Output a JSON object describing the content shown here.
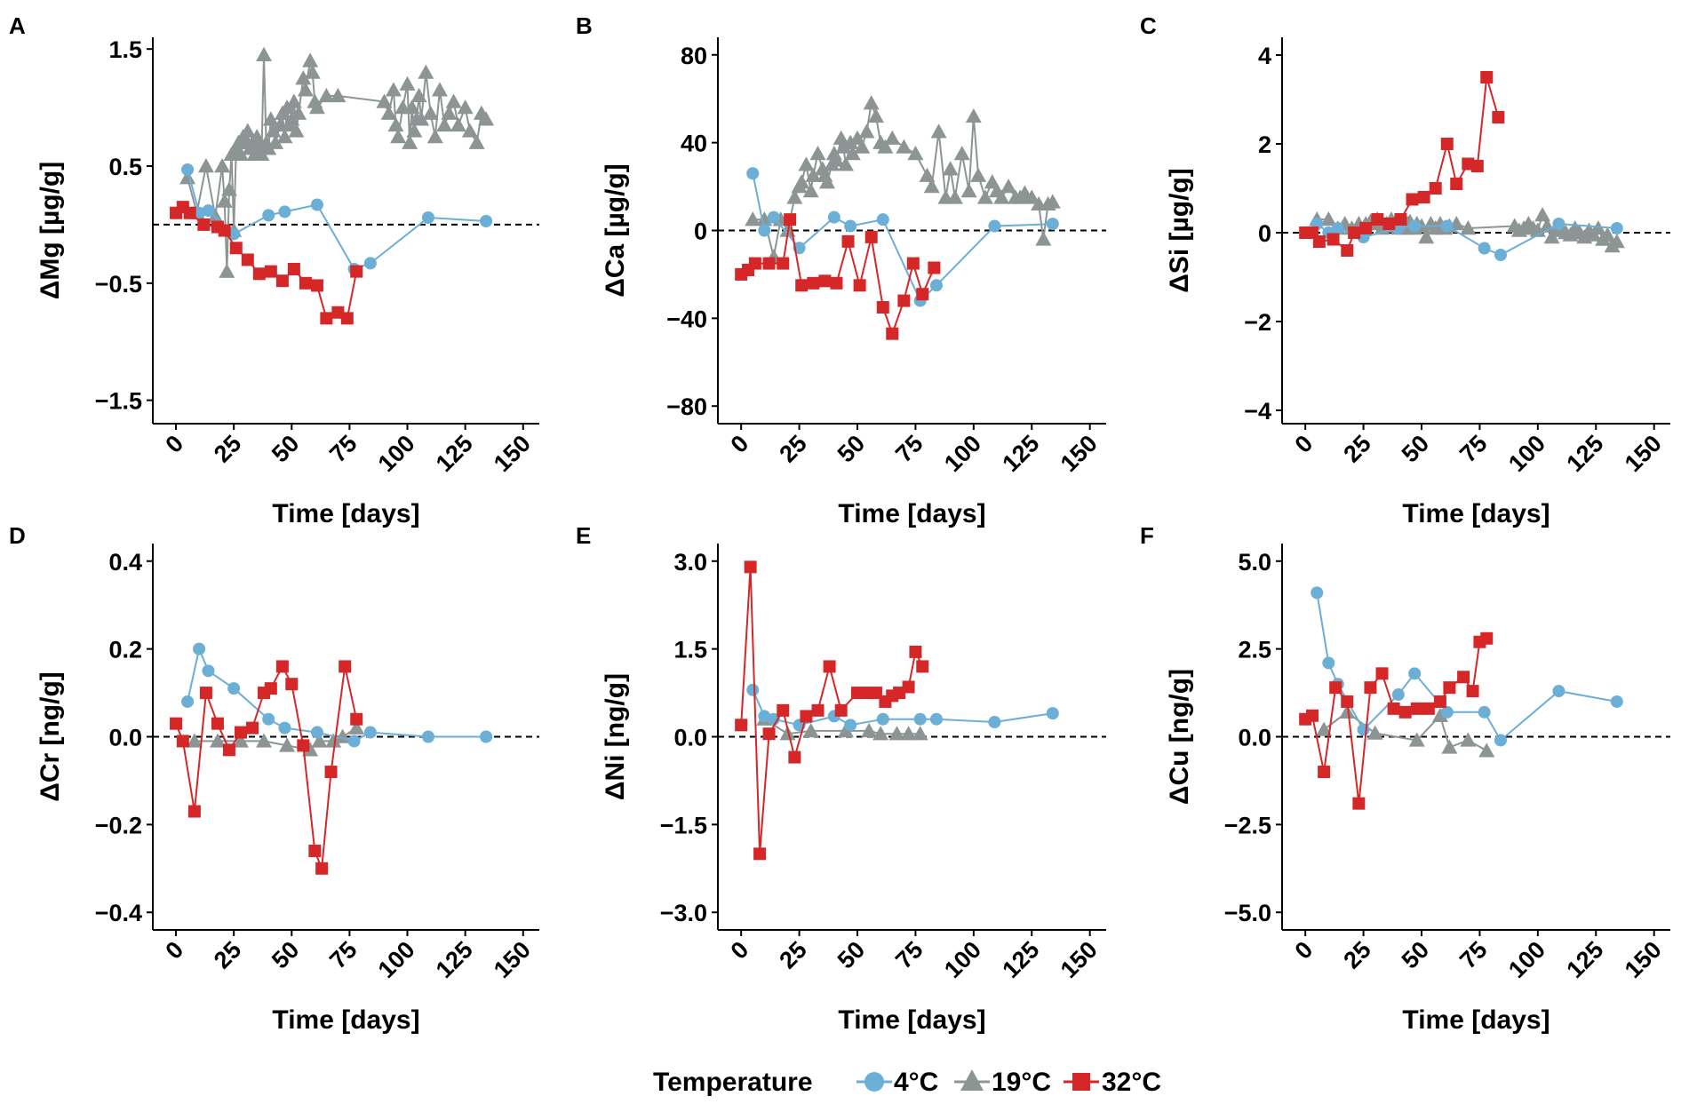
{
  "colors": {
    "4C": "#6baed6",
    "19C": "#8c9593",
    "32C": "#d62728",
    "zero_line": "#000000"
  },
  "legend": {
    "title": "Temperature",
    "items": [
      {
        "key": "4C",
        "label": "4°C",
        "marker": "circle"
      },
      {
        "key": "19C",
        "label": "19°C",
        "marker": "triangle"
      },
      {
        "key": "32C",
        "label": "32°C",
        "marker": "square"
      }
    ]
  },
  "chart_data": [
    {
      "panel": "A",
      "type": "line",
      "xlabel": "Time [days]",
      "ylabel": "ΔMg [µg/g]",
      "xlim": [
        -10,
        157
      ],
      "ylim": [
        -1.7,
        1.6
      ],
      "xticks": [
        0,
        25,
        50,
        75,
        100,
        125,
        150
      ],
      "yticks": [
        1.5,
        0.5,
        -0.5,
        -1.5
      ],
      "ytick_labels": [
        "1.5",
        "0.5",
        "−0.5",
        "−1.5"
      ],
      "series": [
        {
          "name": "4°C",
          "key": "4C",
          "x": [
            5,
            10,
            14,
            25,
            40,
            47,
            61,
            77,
            84,
            109,
            134
          ],
          "y": [
            0.47,
            0.1,
            0.12,
            -0.08,
            0.08,
            0.11,
            0.17,
            -0.38,
            -0.33,
            0.06,
            0.03
          ]
        },
        {
          "name": "19°C",
          "key": "19C",
          "x": [
            5,
            9,
            13,
            17,
            20,
            21,
            22,
            23,
            24,
            25,
            26,
            27,
            28,
            29,
            30,
            31,
            32,
            33,
            34,
            35,
            36,
            37,
            38,
            39,
            40,
            41,
            42,
            43,
            45,
            46,
            47,
            48,
            49,
            50,
            51,
            52,
            53,
            55,
            56,
            58,
            59,
            60,
            61,
            65,
            70,
            90,
            92,
            94,
            95,
            96,
            98,
            100,
            101,
            102,
            103,
            104,
            105,
            106,
            108,
            110,
            112,
            114,
            116,
            118,
            120,
            122,
            125,
            127,
            130,
            132,
            134
          ],
          "y": [
            0.4,
            0.1,
            0.5,
            0.07,
            0.5,
            0.2,
            -0.4,
            0.3,
            0.6,
            -0.05,
            0.65,
            0.7,
            0.6,
            0.75,
            0.7,
            0.8,
            0.65,
            0.7,
            0.6,
            0.75,
            0.65,
            0.6,
            1.45,
            0.7,
            0.65,
            0.9,
            0.8,
            0.7,
            0.85,
            0.95,
            0.75,
            1.0,
            0.85,
            0.9,
            1.05,
            0.8,
            0.95,
            1.25,
            1.15,
            1.4,
            1.3,
            1.05,
            1.0,
            1.1,
            1.1,
            1.05,
            0.95,
            1.15,
            0.85,
            0.75,
            1.0,
            1.2,
            0.7,
            1.0,
            0.8,
            0.9,
            1.1,
            0.9,
            1.3,
            0.95,
            0.75,
            1.15,
            0.85,
            0.95,
            1.05,
            0.85,
            1.0,
            0.8,
            0.7,
            0.95,
            0.9
          ]
        },
        {
          "name": "32°C",
          "key": "32C",
          "x": [
            0,
            3,
            6,
            12,
            18,
            21,
            26,
            31,
            36,
            41,
            46,
            51,
            56,
            61,
            65,
            70,
            74,
            78
          ],
          "y": [
            0.1,
            0.15,
            0.1,
            0.0,
            -0.02,
            -0.05,
            -0.2,
            -0.3,
            -0.42,
            -0.4,
            -0.48,
            -0.38,
            -0.5,
            -0.52,
            -0.8,
            -0.75,
            -0.8,
            -0.4
          ]
        }
      ]
    },
    {
      "panel": "B",
      "type": "line",
      "xlabel": "Time [days]",
      "ylabel": "ΔCa [µg/g]",
      "xlim": [
        -10,
        157
      ],
      "ylim": [
        -88,
        88
      ],
      "xticks": [
        0,
        25,
        50,
        75,
        100,
        125,
        150
      ],
      "yticks": [
        80,
        40,
        0,
        -40,
        -80
      ],
      "ytick_labels": [
        "80",
        "40",
        "0",
        "−40",
        "−80"
      ],
      "series": [
        {
          "name": "4°C",
          "key": "4C",
          "x": [
            5,
            10,
            14,
            25,
            40,
            47,
            61,
            77,
            84,
            109,
            134
          ],
          "y": [
            26,
            0,
            6,
            -8,
            6,
            2,
            5,
            -32,
            -25,
            2,
            3
          ]
        },
        {
          "name": "19°C",
          "key": "19C",
          "x": [
            5,
            10,
            14,
            17,
            20,
            23,
            25,
            26,
            28,
            30,
            31,
            33,
            35,
            36,
            37,
            39,
            40,
            41,
            43,
            44,
            45,
            47,
            48,
            50,
            52,
            54,
            56,
            58,
            60,
            62,
            65,
            70,
            75,
            80,
            82,
            85,
            88,
            90,
            92,
            95,
            98,
            100,
            102,
            105,
            108,
            110,
            112,
            115,
            118,
            120,
            122,
            125,
            128,
            130,
            132,
            134
          ],
          "y": [
            5,
            5,
            -12,
            5,
            0,
            15,
            20,
            22,
            30,
            18,
            25,
            35,
            28,
            25,
            22,
            30,
            35,
            32,
            42,
            38,
            30,
            40,
            35,
            42,
            38,
            45,
            58,
            52,
            40,
            38,
            42,
            38,
            35,
            25,
            20,
            45,
            15,
            28,
            15,
            35,
            18,
            52,
            25,
            15,
            22,
            18,
            15,
            20,
            15,
            15,
            17,
            15,
            12,
            -4,
            12,
            13
          ]
        },
        {
          "name": "32°C",
          "key": "32C",
          "x": [
            0,
            3,
            6,
            12,
            18,
            21,
            26,
            31,
            36,
            41,
            46,
            51,
            56,
            61,
            65,
            70,
            74,
            78,
            83
          ],
          "y": [
            -20,
            -18,
            -15,
            -15,
            -15,
            5,
            -25,
            -24,
            -23,
            -24,
            -5,
            -25,
            -3,
            -35,
            -47,
            -32,
            -15,
            -29,
            -17
          ]
        }
      ]
    },
    {
      "panel": "C",
      "type": "line",
      "xlabel": "Time [days]",
      "ylabel": "ΔSi [µg/g]",
      "xlim": [
        -10,
        157
      ],
      "ylim": [
        -4.3,
        4.4
      ],
      "xticks": [
        0,
        25,
        50,
        75,
        100,
        125,
        150
      ],
      "yticks": [
        4,
        2,
        0,
        -2,
        -4
      ],
      "ytick_labels": [
        "4",
        "2",
        "0",
        "−2",
        "−4"
      ],
      "series": [
        {
          "name": "4°C",
          "key": "4C",
          "x": [
            5,
            10,
            14,
            25,
            40,
            47,
            61,
            77,
            84,
            109,
            134
          ],
          "y": [
            0.2,
            0.0,
            0.1,
            -0.1,
            0.1,
            0.15,
            0.15,
            -0.35,
            -0.5,
            0.2,
            0.1
          ]
        },
        {
          "name": "19°C",
          "key": "19C",
          "x": [
            5,
            10,
            14,
            17,
            20,
            23,
            25,
            26,
            28,
            30,
            31,
            33,
            35,
            36,
            37,
            39,
            40,
            41,
            43,
            44,
            45,
            47,
            48,
            50,
            52,
            54,
            56,
            58,
            60,
            62,
            65,
            70,
            90,
            92,
            94,
            96,
            98,
            100,
            102,
            104,
            106,
            108,
            110,
            112,
            114,
            116,
            118,
            120,
            122,
            124,
            126,
            128,
            130,
            132,
            134
          ],
          "y": [
            0.3,
            0.3,
            0.1,
            0.2,
            0.1,
            0.2,
            0.1,
            0.2,
            0.25,
            0.2,
            0.3,
            0.1,
            0.2,
            0.15,
            0.3,
            0.2,
            0.1,
            0.25,
            0.1,
            0.2,
            0.25,
            0.1,
            0.2,
            0.15,
            -0.1,
            0.2,
            0.1,
            0.2,
            0.1,
            0.15,
            0.2,
            0.1,
            0.15,
            0.05,
            0.1,
            0.2,
            0.1,
            0.05,
            0.4,
            0.15,
            -0.1,
            0.05,
            0.1,
            0.0,
            -0.05,
            0.1,
            0.0,
            -0.1,
            0.05,
            -0.05,
            0.1,
            -0.15,
            -0.05,
            -0.3,
            -0.2
          ]
        },
        {
          "name": "32°C",
          "key": "32C",
          "x": [
            0,
            3,
            6,
            12,
            18,
            21,
            26,
            31,
            36,
            41,
            46,
            51,
            56,
            61,
            65,
            70,
            74,
            78,
            83
          ],
          "y": [
            0.0,
            0.0,
            -0.2,
            -0.15,
            -0.4,
            0.0,
            0.1,
            0.3,
            0.2,
            0.3,
            0.75,
            0.8,
            1.0,
            2.0,
            1.1,
            1.55,
            1.5,
            3.5,
            2.6
          ]
        }
      ]
    },
    {
      "panel": "D",
      "type": "line",
      "xlabel": "Time [days]",
      "ylabel": "ΔCr [ng/g]",
      "xlim": [
        -10,
        157
      ],
      "ylim": [
        -0.44,
        0.44
      ],
      "xticks": [
        0,
        25,
        50,
        75,
        100,
        125,
        150
      ],
      "yticks": [
        0.4,
        0.2,
        0.0,
        -0.2,
        -0.4
      ],
      "ytick_labels": [
        "0.4",
        "0.2",
        "0.0",
        "−0.2",
        "−0.4"
      ],
      "series": [
        {
          "name": "4°C",
          "key": "4C",
          "x": [
            5,
            10,
            14,
            25,
            40,
            47,
            61,
            77,
            84,
            109,
            134
          ],
          "y": [
            0.08,
            0.2,
            0.15,
            0.11,
            0.04,
            0.02,
            0.01,
            -0.01,
            0.01,
            0.0,
            0.0
          ]
        },
        {
          "name": "19°C",
          "key": "19C",
          "x": [
            8,
            18,
            28,
            38,
            48,
            58,
            62,
            68,
            72,
            78
          ],
          "y": [
            -0.01,
            -0.01,
            -0.01,
            -0.01,
            -0.02,
            -0.03,
            -0.01,
            -0.01,
            0.0,
            0.02
          ]
        },
        {
          "name": "32°C",
          "key": "32C",
          "x": [
            0,
            3,
            8,
            13,
            18,
            23,
            28,
            33,
            38,
            41,
            46,
            50,
            55,
            60,
            63,
            67,
            73,
            78
          ],
          "y": [
            0.03,
            -0.01,
            -0.17,
            0.1,
            0.03,
            -0.03,
            0.01,
            0.02,
            0.1,
            0.11,
            0.16,
            0.12,
            -0.02,
            -0.26,
            -0.3,
            -0.08,
            0.16,
            0.04
          ]
        }
      ]
    },
    {
      "panel": "E",
      "type": "line",
      "xlabel": "Time [days]",
      "ylabel": "ΔNi [ng/g]",
      "xlim": [
        -10,
        157
      ],
      "ylim": [
        -3.3,
        3.3
      ],
      "xticks": [
        0,
        25,
        50,
        75,
        100,
        125,
        150
      ],
      "yticks": [
        3.0,
        1.5,
        0.0,
        -1.5,
        -3.0
      ],
      "ytick_labels": [
        "3.0",
        "1.5",
        "0.0",
        "−1.5",
        "−3.0"
      ],
      "series": [
        {
          "name": "4°C",
          "key": "4C",
          "x": [
            5,
            10,
            14,
            25,
            40,
            47,
            61,
            77,
            84,
            109,
            134
          ],
          "y": [
            0.8,
            0.35,
            0.3,
            0.2,
            0.35,
            0.2,
            0.3,
            0.3,
            0.3,
            0.25,
            0.4
          ]
        },
        {
          "name": "19°C",
          "key": "19C",
          "x": [
            10,
            20,
            30,
            45,
            55,
            60,
            67,
            72,
            77
          ],
          "y": [
            0.3,
            0.05,
            0.1,
            0.1,
            0.1,
            0.05,
            0.05,
            0.05,
            0.05
          ]
        },
        {
          "name": "32°C",
          "key": "32C",
          "x": [
            0,
            4,
            8,
            12,
            18,
            23,
            28,
            33,
            38,
            43,
            50,
            54,
            58,
            62,
            65,
            68,
            72,
            75,
            78
          ],
          "y": [
            0.2,
            2.9,
            -2.0,
            0.05,
            0.45,
            -0.35,
            0.35,
            0.45,
            1.2,
            0.45,
            0.75,
            0.75,
            0.75,
            0.6,
            0.7,
            0.75,
            0.85,
            1.45,
            1.2
          ]
        }
      ]
    },
    {
      "panel": "F",
      "type": "line",
      "xlabel": "Time [days]",
      "ylabel": "ΔCu [ng/g]",
      "xlim": [
        -10,
        157
      ],
      "ylim": [
        -5.5,
        5.5
      ],
      "xticks": [
        0,
        25,
        50,
        75,
        100,
        125,
        150
      ],
      "yticks": [
        5.0,
        2.5,
        0.0,
        -2.5,
        -5.0
      ],
      "ytick_labels": [
        "5.0",
        "2.5",
        "0.0",
        "−2.5",
        "−5.0"
      ],
      "series": [
        {
          "name": "4°C",
          "key": "4C",
          "x": [
            5,
            10,
            14,
            25,
            40,
            47,
            61,
            77,
            84,
            109,
            134
          ],
          "y": [
            4.1,
            2.1,
            1.5,
            0.2,
            1.2,
            1.8,
            0.7,
            0.7,
            -0.1,
            1.3,
            1.0
          ]
        },
        {
          "name": "19°C",
          "key": "19C",
          "x": [
            8,
            18,
            30,
            48,
            58,
            62,
            70,
            78
          ],
          "y": [
            0.2,
            0.7,
            0.1,
            -0.1,
            0.6,
            -0.3,
            -0.1,
            -0.4
          ]
        },
        {
          "name": "32°C",
          "key": "32C",
          "x": [
            0,
            3,
            8,
            13,
            18,
            23,
            28,
            33,
            38,
            43,
            48,
            53,
            58,
            62,
            68,
            72,
            75,
            78
          ],
          "y": [
            0.5,
            0.6,
            -1.0,
            1.4,
            1.0,
            -1.9,
            1.4,
            1.8,
            0.8,
            0.7,
            0.8,
            0.8,
            1.0,
            1.4,
            1.7,
            1.3,
            2.7,
            2.8
          ]
        }
      ]
    }
  ]
}
